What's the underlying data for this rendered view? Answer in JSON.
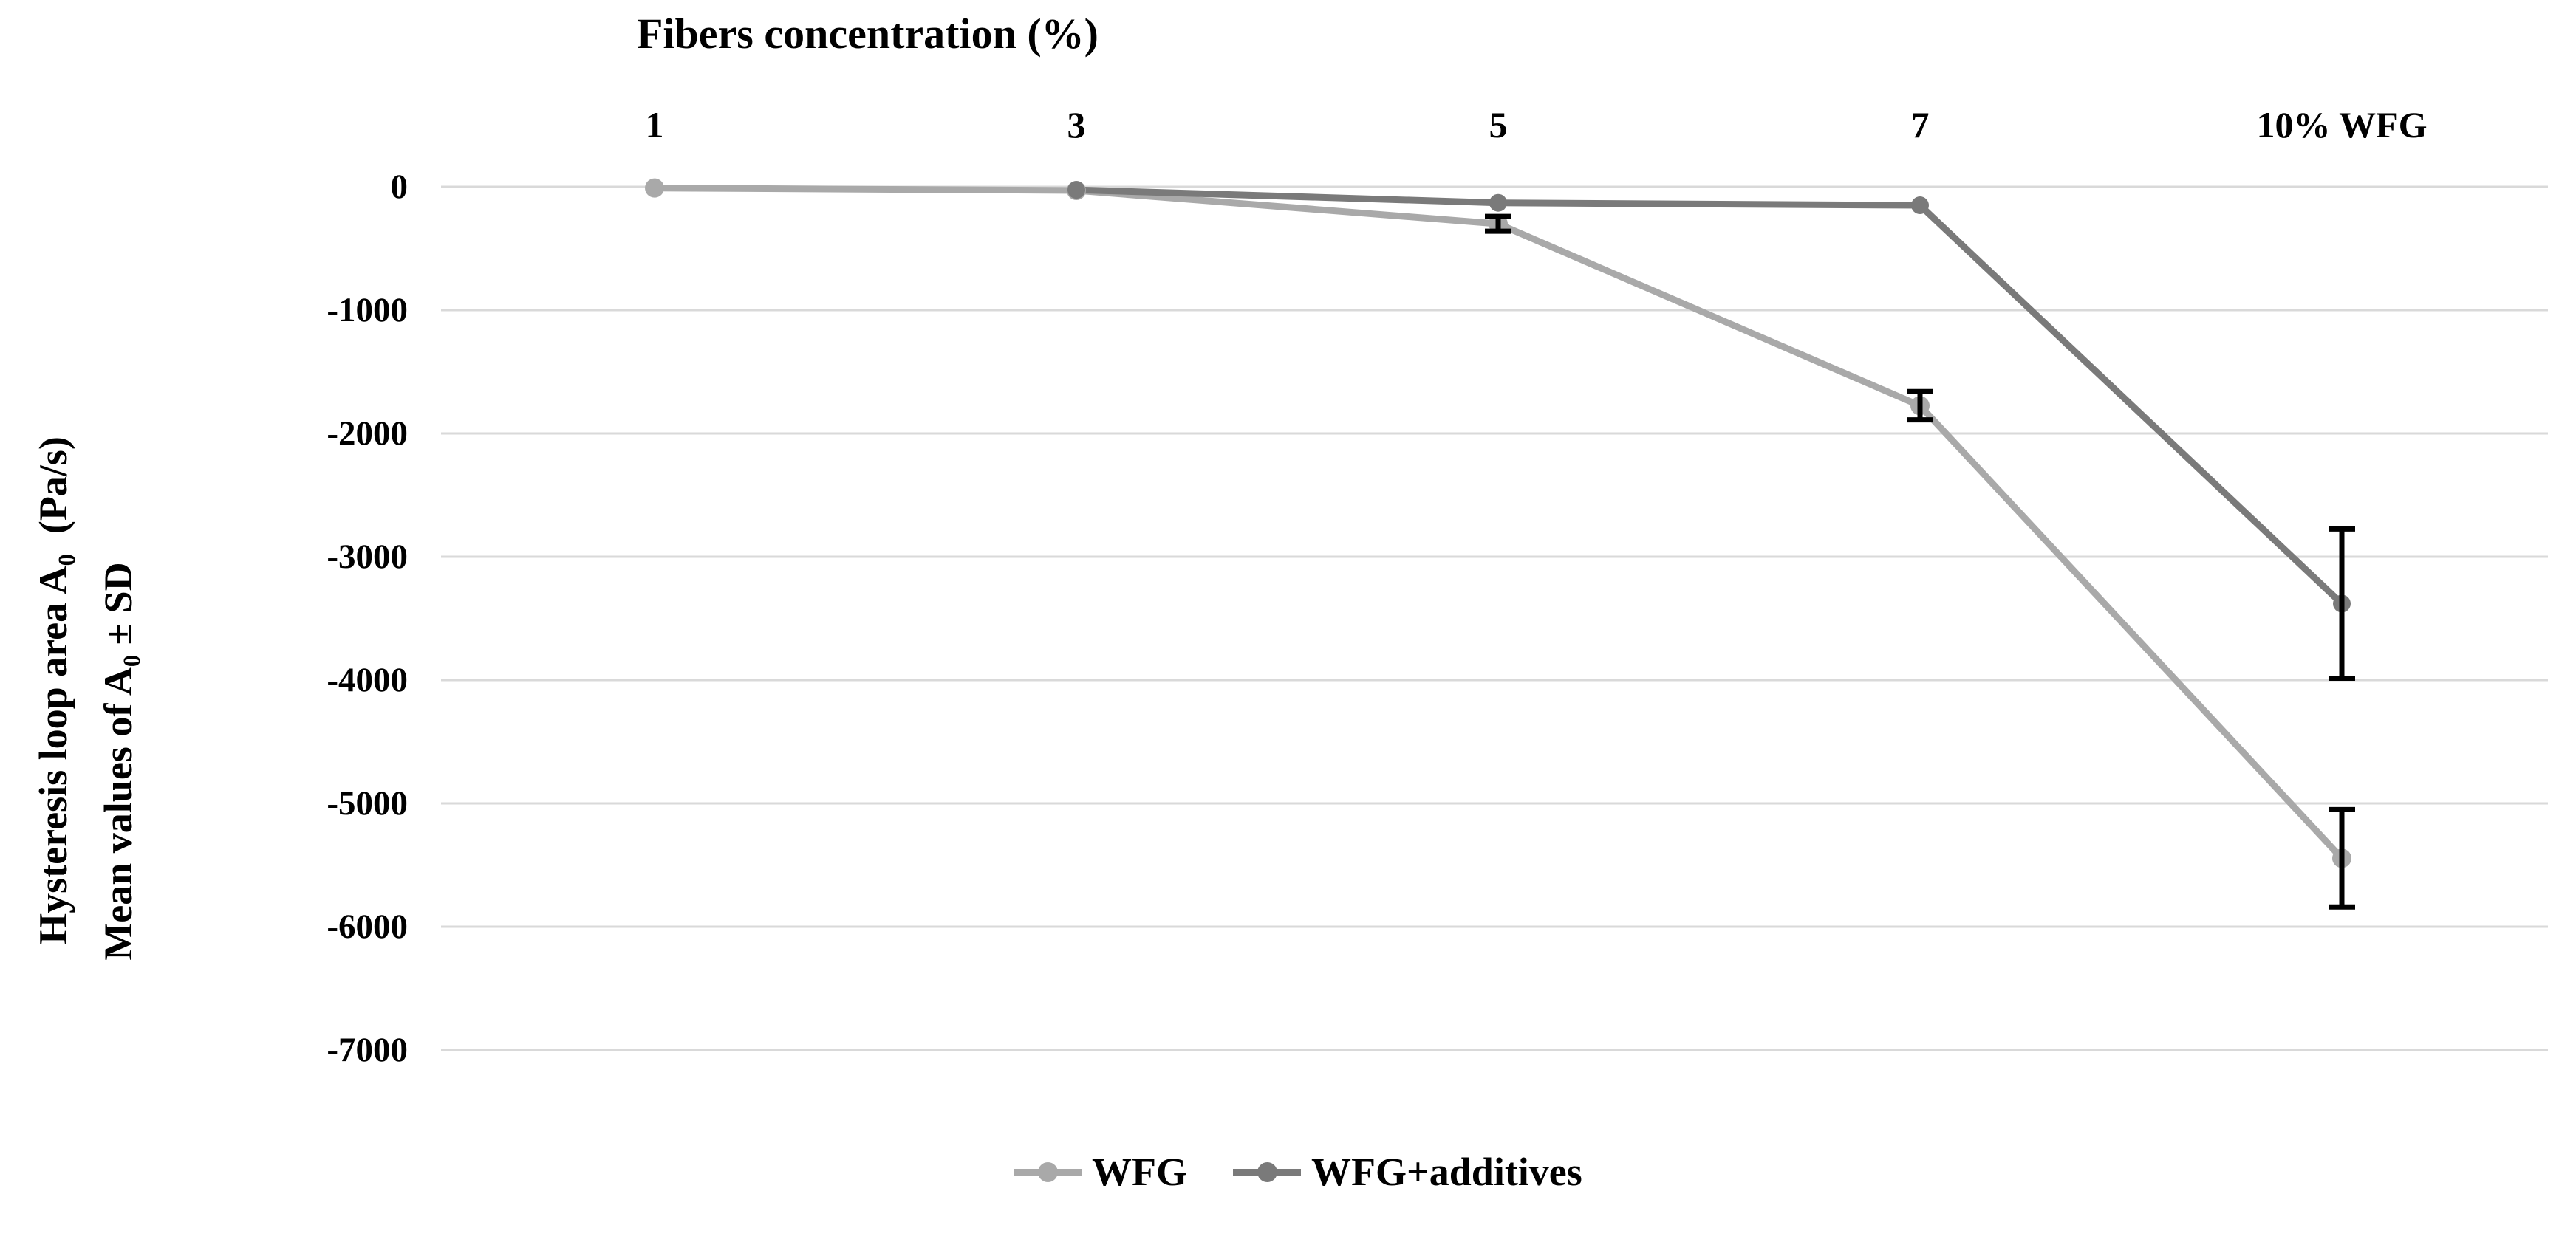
{
  "page": {
    "background": "#ffffff"
  },
  "chart_data": {
    "type": "line",
    "title": "Fibers concentration (%)",
    "categories": [
      "1",
      "3",
      "5",
      "7",
      "10% WFG"
    ],
    "y_tick_labels": [
      "0",
      "-1000",
      "-2000",
      "-3000",
      "-4000",
      "-5000",
      "-6000",
      "-7000"
    ],
    "ylabel_line1": "Hysteresis loop area A₀  (Pa/s)",
    "ylabel_line2": "Mean values of A₀ ± SD",
    "ylim": [
      0,
      -7000
    ],
    "grid": true,
    "legend_position": "bottom",
    "series": [
      {
        "name": "WFG",
        "color": "#a9a9a9",
        "values": [
          -10,
          -30,
          -300,
          -1775,
          -5445
        ],
        "sd": [
          0,
          0,
          60,
          115,
          395
        ]
      },
      {
        "name": "WFG+additives",
        "color": "#7a7a7a",
        "values": [
          null,
          -25,
          -130,
          -150,
          -3380
        ],
        "sd": [
          0,
          0,
          0,
          0,
          605
        ]
      }
    ],
    "error_bar_color": "#000000",
    "gridline_color": "#d9d9d9",
    "text_color": "#000000"
  }
}
